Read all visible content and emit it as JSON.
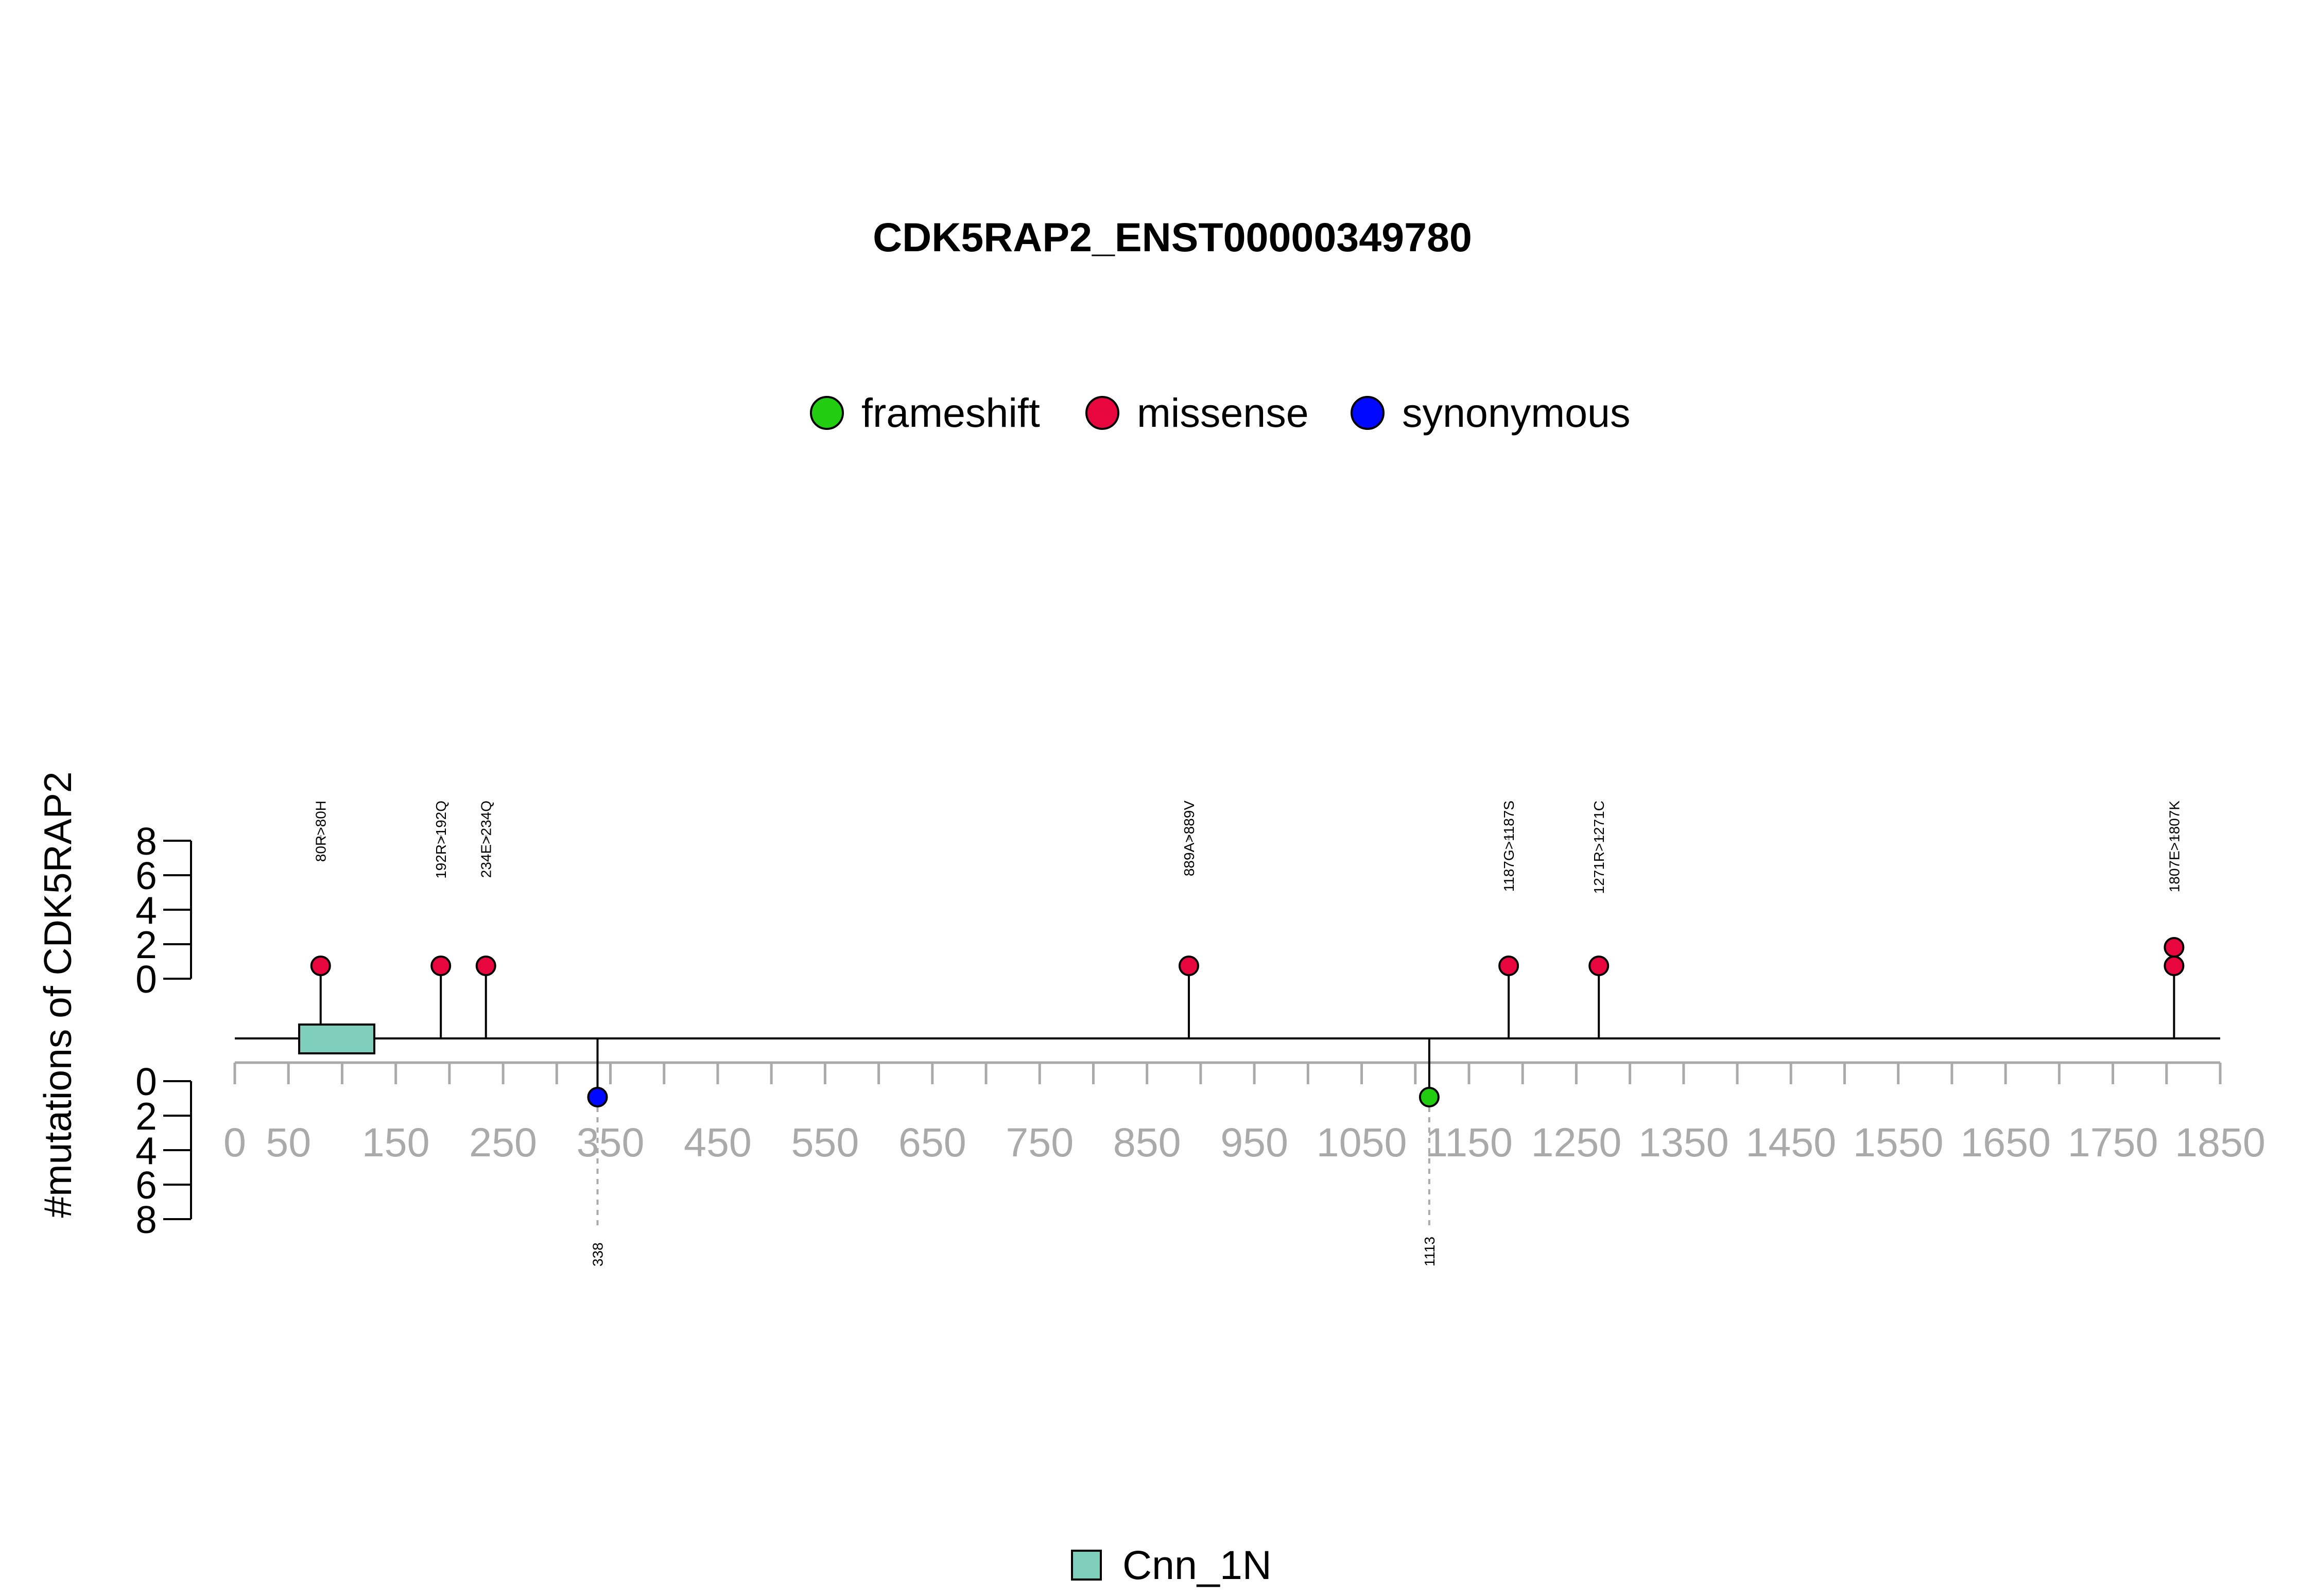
{
  "chart_data": {
    "type": "lollipop",
    "title": "CDK5RAP2_ENST00000349780",
    "ylabel": "#mutations of CDK5RAP2",
    "xlim": [
      0,
      1850
    ],
    "x_ticks": [
      0,
      50,
      150,
      250,
      350,
      450,
      550,
      650,
      750,
      850,
      950,
      1050,
      1150,
      1250,
      1350,
      1450,
      1550,
      1650,
      1750,
      1850
    ],
    "x_minor_tick_step": 50,
    "y_ticks": [
      0,
      2,
      4,
      6,
      8
    ],
    "ylim": [
      0,
      8
    ],
    "grid": false,
    "legend_position": "top",
    "legend": [
      {
        "label": "frameshift",
        "color": "#22CC11"
      },
      {
        "label": "missense",
        "color": "#E8063F"
      },
      {
        "label": "synonymous",
        "color": "#0008FF"
      }
    ],
    "domains": [
      {
        "name": "Cnn_1N",
        "start": 60,
        "end": 130,
        "color": "#7FCDBB"
      }
    ],
    "domain_legend_position": "bottom",
    "mutations_up": [
      {
        "position": 80,
        "label": "80R>80H",
        "type": "missense",
        "count": 1
      },
      {
        "position": 192,
        "label": "192R>192Q",
        "type": "missense",
        "count": 1
      },
      {
        "position": 234,
        "label": "234E>234Q",
        "type": "missense",
        "count": 1
      },
      {
        "position": 889,
        "label": "889A>889V",
        "type": "missense",
        "count": 1
      },
      {
        "position": 1187,
        "label": "1187G>1187S",
        "type": "missense",
        "count": 1
      },
      {
        "position": 1271,
        "label": "1271R>1271C",
        "type": "missense",
        "count": 1
      },
      {
        "position": 1807,
        "label": "1807E>1807K",
        "type": "missense",
        "count": 2
      }
    ],
    "mutations_down": [
      {
        "position": 338,
        "label": "338",
        "type": "synonymous",
        "count": 1
      },
      {
        "position": 1113,
        "label": "1113",
        "type": "frameshift",
        "count": 1
      }
    ]
  }
}
